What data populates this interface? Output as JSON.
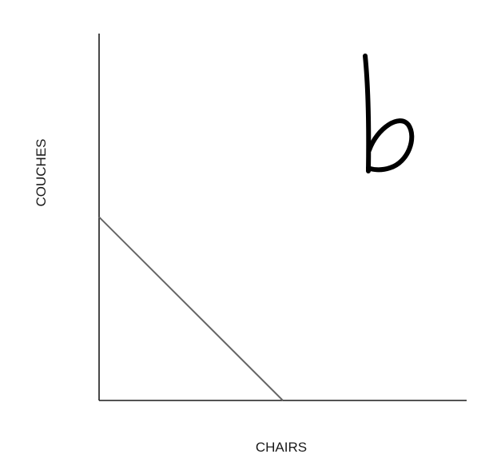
{
  "chart_data": {
    "type": "line",
    "title": "",
    "xlabel": "CHAIRS",
    "ylabel": "COUCHES",
    "xlim": [
      0,
      1
    ],
    "ylim": [
      0,
      1
    ],
    "grid": false,
    "series": [
      {
        "x": [
          0,
          0.5
        ],
        "y": [
          0.5,
          0
        ]
      }
    ],
    "annotation": {
      "label": "b",
      "color": "#000000"
    },
    "colors": {
      "axis": "#1a1a1a",
      "series": "#666666"
    }
  }
}
